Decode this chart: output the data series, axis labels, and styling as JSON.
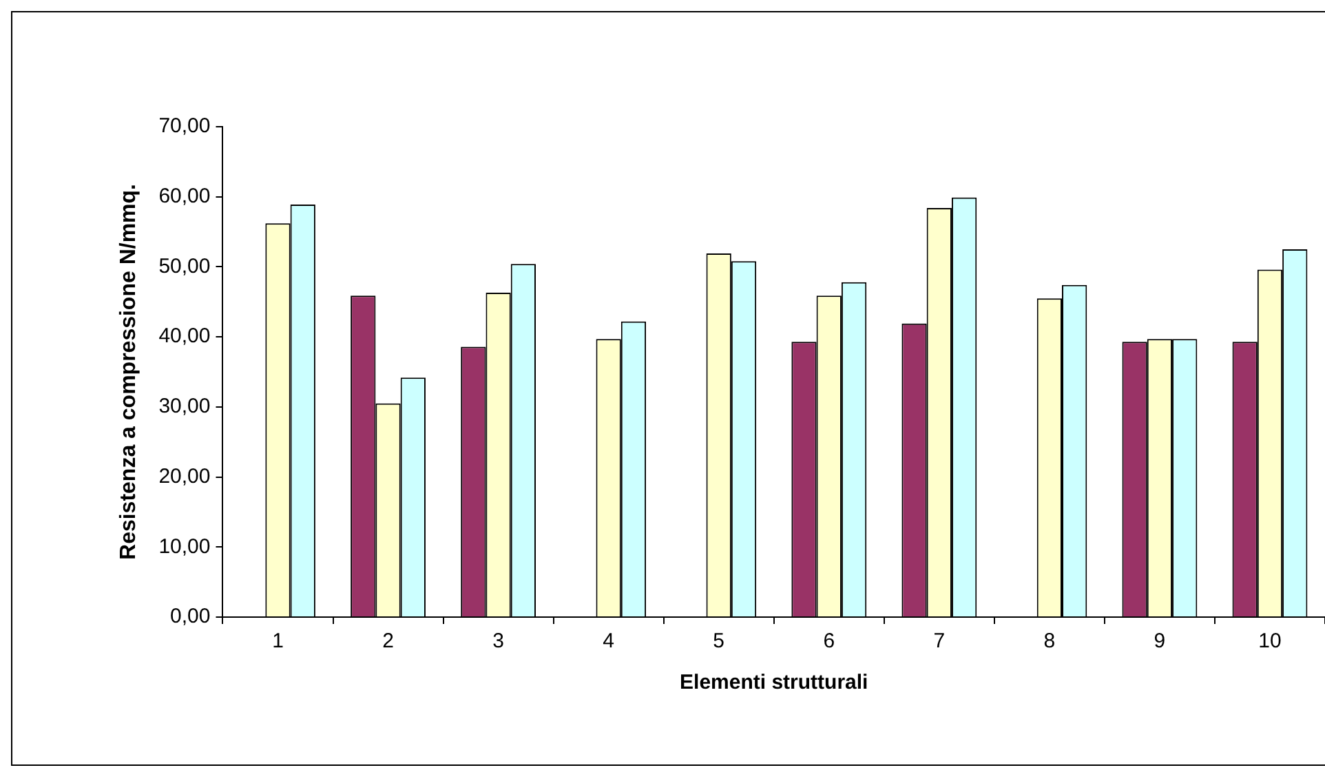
{
  "chart_data": {
    "type": "bar",
    "xlabel": "Elementi strutturali",
    "ylabel": "Resistenza a compressione N/mmq.",
    "categories": [
      "1",
      "2",
      "3",
      "4",
      "5",
      "6",
      "7",
      "8",
      "9",
      "10"
    ],
    "series": [
      {
        "color": "#993366",
        "values": [
          null,
          45.9,
          38.6,
          null,
          null,
          39.3,
          41.9,
          null,
          39.3,
          39.3
        ]
      },
      {
        "color": "#ffffcc",
        "values": [
          56.2,
          30.5,
          46.3,
          39.7,
          51.9,
          45.9,
          58.4,
          45.5,
          39.7,
          49.6
        ]
      },
      {
        "color": "#ccffff",
        "values": [
          58.9,
          34.2,
          50.4,
          42.2,
          50.8,
          47.8,
          59.9,
          47.4,
          39.7,
          52.5
        ]
      }
    ],
    "ylim": [
      0,
      70
    ],
    "yticks": [
      {
        "value": 0,
        "label": "0,00"
      },
      {
        "value": 10,
        "label": "10,00"
      },
      {
        "value": 20,
        "label": "20,00"
      },
      {
        "value": 30,
        "label": "30,00"
      },
      {
        "value": 40,
        "label": "40,00"
      },
      {
        "value": 50,
        "label": "50,00"
      },
      {
        "value": 60,
        "label": "60,00"
      },
      {
        "value": 70,
        "label": "70,00"
      }
    ],
    "grid": false,
    "legend": false
  }
}
